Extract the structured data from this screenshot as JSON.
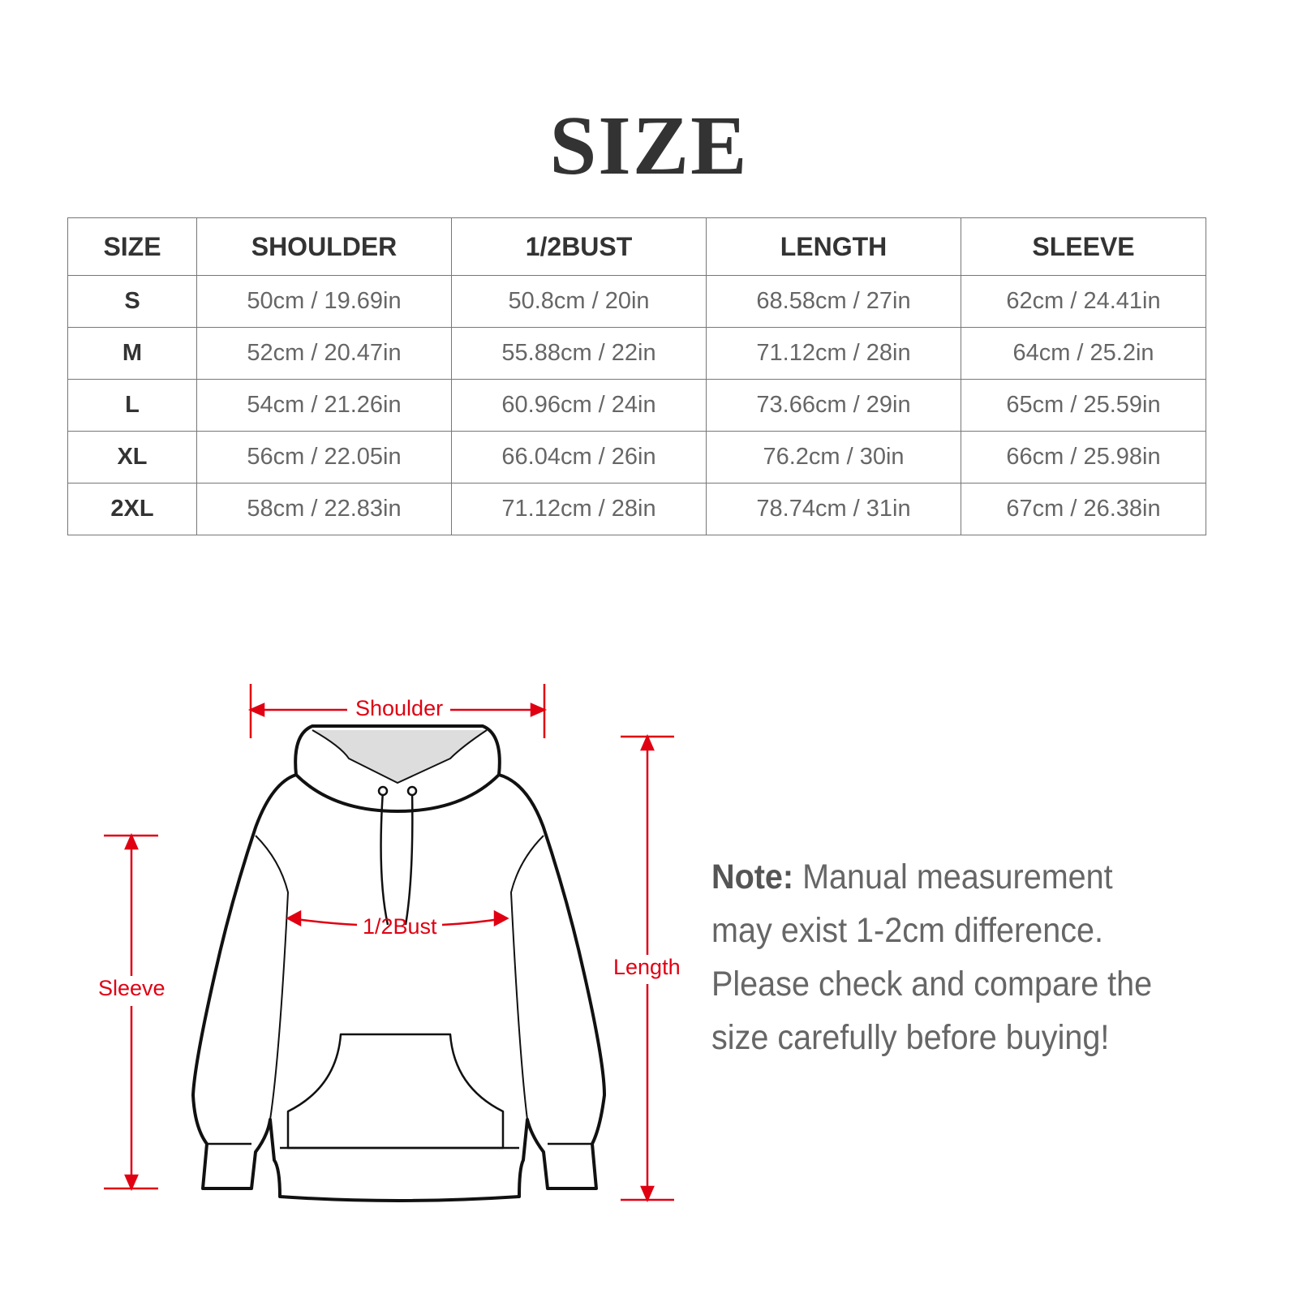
{
  "title": "SIZE",
  "table": {
    "headers": [
      "SIZE",
      "SHOULDER",
      "1/2BUST",
      "LENGTH",
      "SLEEVE"
    ],
    "rows": [
      [
        "S",
        "50cm / 19.69in",
        "50.8cm / 20in",
        "68.58cm / 27in",
        "62cm / 24.41in"
      ],
      [
        "M",
        "52cm / 20.47in",
        "55.88cm / 22in",
        "71.12cm / 28in",
        "64cm / 25.2in"
      ],
      [
        "L",
        "54cm / 21.26in",
        "60.96cm / 24in",
        "73.66cm / 29in",
        "65cm / 25.59in"
      ],
      [
        "XL",
        "56cm / 22.05in",
        "66.04cm / 26in",
        "76.2cm / 30in",
        "66cm / 25.98in"
      ],
      [
        "2XL",
        "58cm / 22.83in",
        "71.12cm / 28in",
        "78.74cm / 31in",
        "67cm / 26.38in"
      ]
    ]
  },
  "diagram": {
    "labels": {
      "shoulder": "Shoulder",
      "bust": "1/2Bust",
      "sleeve": "Sleeve",
      "length": "Length"
    },
    "accent_color": "#e00012"
  },
  "note": {
    "label": "Note:",
    "text": " Manual measurement may exist 1-2cm difference. Please check and compare the size carefully before buying!"
  }
}
